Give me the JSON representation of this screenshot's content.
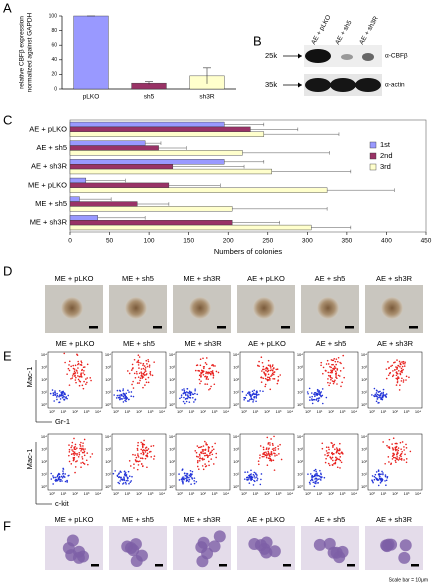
{
  "panel_labels": [
    "A",
    "B",
    "C",
    "D",
    "E",
    "F"
  ],
  "chart_data": [
    {
      "type": "bar",
      "ylabel": [
        "relative CBFβ expression",
        "normalized against GAPDH"
      ],
      "categories": [
        "pLKO",
        "sh5",
        "sh3R"
      ],
      "values": [
        100,
        8,
        18
      ],
      "errors": [
        0,
        2,
        11
      ],
      "colors": [
        "#9999ff",
        "#993366",
        "#ffffcc"
      ],
      "ylim": [
        0,
        100
      ],
      "yticks": [
        0,
        20,
        40,
        60,
        80,
        100
      ]
    },
    {
      "type": "barh",
      "categories": [
        "AE + pLKO",
        "AE + sh5",
        "AE + sh3R",
        "ME + pLKO",
        "ME + sh5",
        "ME + sh3R"
      ],
      "series": [
        {
          "name": "1st",
          "color": "#9999ff",
          "values": [
            195,
            95,
            195,
            20,
            12,
            35
          ],
          "errors": [
            50,
            20,
            50,
            50,
            40,
            60
          ]
        },
        {
          "name": "2nd",
          "color": "#993366",
          "values": [
            228,
            112,
            130,
            125,
            85,
            205
          ],
          "errors": [
            60,
            35,
            90,
            65,
            40,
            60
          ]
        },
        {
          "name": "3rd",
          "color": "#ffffcc",
          "values": [
            245,
            218,
            255,
            325,
            205,
            305
          ],
          "errors": [
            95,
            110,
            100,
            85,
            120,
            50
          ]
        }
      ],
      "xlabel": "Numbers of colonies",
      "xlim": [
        0,
        450
      ],
      "xticks": [
        0,
        50,
        100,
        150,
        200,
        250,
        300,
        350,
        400,
        450
      ],
      "legend": "right"
    }
  ],
  "blot": {
    "lanes": [
      "AE + pLKO",
      "AE + sh5",
      "AE + sh3R"
    ],
    "markers": [
      "25k",
      "35k"
    ],
    "antibodies": [
      "α-CBFβ",
      "α-actin"
    ]
  },
  "colony_images": {
    "labels": [
      "ME + pLKO",
      "ME + sh5",
      "ME + sh3R",
      "AE + pLKO",
      "AE + sh5",
      "AE + sh3R"
    ]
  },
  "flow": {
    "labels": [
      "ME + pLKO",
      "ME + sh5",
      "ME + sh3R",
      "AE + pLKO",
      "AE + sh5",
      "AE + sh3R"
    ],
    "y_axis": "Mac-1",
    "x_axes": [
      "Gr-1",
      "c-kit"
    ],
    "ticks": [
      "10⁰",
      "10¹",
      "10²",
      "10³",
      "10⁴"
    ]
  },
  "cytospin": {
    "labels": [
      "ME + pLKO",
      "ME + sh5",
      "ME + sh3R",
      "AE + pLKO",
      "AE + sh5",
      "AE + sh3R"
    ],
    "scale_note": "Scale bar = 10μm"
  }
}
